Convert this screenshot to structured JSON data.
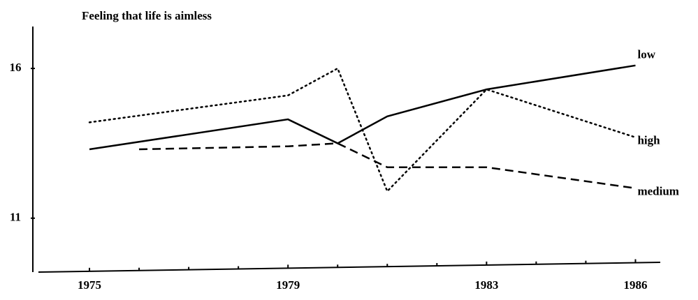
{
  "chart_data": {
    "type": "line",
    "title": "Feeling that life is aimless",
    "xlim": [
      1974,
      1986.5
    ],
    "xticks": [
      1975,
      1979,
      1983,
      1986
    ],
    "xminor": [
      1976,
      1977,
      1978,
      1980,
      1981,
      1982,
      1984,
      1985
    ],
    "ylim": [
      9.2,
      17.4
    ],
    "yticks": [
      11,
      16
    ],
    "series": [
      {
        "name": "low",
        "color": "#000000",
        "dash": "solid",
        "x": [
          1975,
          1979,
          1980,
          1981,
          1983,
          1986
        ],
        "values": [
          13.3,
          14.3,
          13.5,
          14.4,
          15.3,
          16.1
        ]
      },
      {
        "name": "high",
        "color": "#000000",
        "dash": "dotted",
        "x": [
          1975,
          1979,
          1980,
          1981,
          1983,
          1986
        ],
        "values": [
          14.2,
          15.1,
          16.0,
          11.9,
          15.3,
          13.7
        ]
      },
      {
        "name": "medium",
        "color": "#000000",
        "dash": "dashed",
        "x": [
          1976,
          1979,
          1980,
          1981,
          1983,
          1986
        ],
        "values": [
          13.3,
          13.4,
          13.5,
          12.7,
          12.7,
          12.0
        ]
      }
    ]
  }
}
